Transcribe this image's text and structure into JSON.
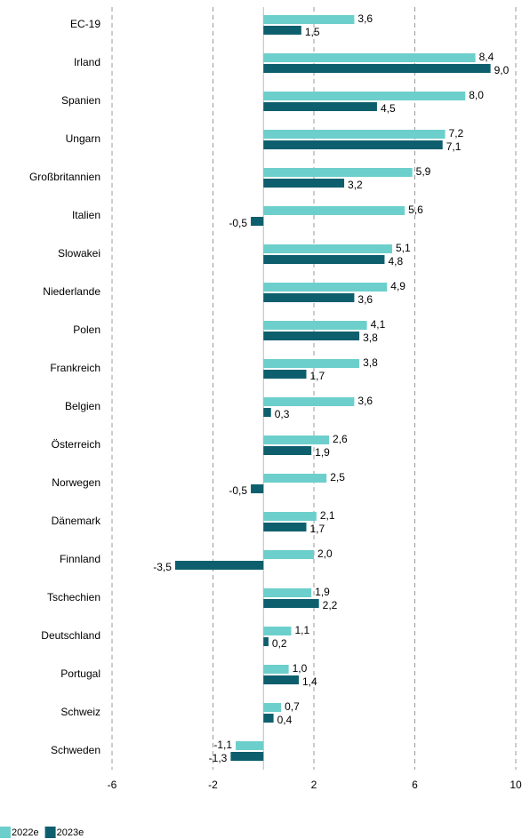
{
  "chart_data": {
    "type": "barh",
    "categories": [
      "EC-19",
      "Irland",
      "Spanien",
      "Ungarn",
      "Großbritannien",
      "Italien",
      "Slowakei",
      "Niederlande",
      "Polen",
      "Frankreich",
      "Belgien",
      "Österreich",
      "Norwegen",
      "Dänemark",
      "Finnland",
      "Tschechien",
      "Deutschland",
      "Portugal",
      "Schweiz",
      "Schweden"
    ],
    "series": [
      {
        "name": "2022e",
        "color": "#6dcfcc",
        "values": [
          3.6,
          8.4,
          8.0,
          7.2,
          5.9,
          5.6,
          5.1,
          4.9,
          4.1,
          3.8,
          3.6,
          2.6,
          2.5,
          2.1,
          2.0,
          1.9,
          1.1,
          1.0,
          0.7,
          -1.1
        ],
        "value_labels": [
          "3,6",
          "8,4",
          "8,0",
          "7,2",
          "5,9",
          "5,6",
          "5,1",
          "4,9",
          "4,1",
          "3,8",
          "3,6",
          "2,6",
          "2,5",
          "2,1",
          "2,0",
          "1,9",
          "1,1",
          "1,0",
          "0,7",
          "-1,1"
        ]
      },
      {
        "name": "2023e",
        "color": "#0e5f6e",
        "values": [
          1.5,
          9.0,
          4.5,
          7.1,
          3.2,
          -0.5,
          4.8,
          3.6,
          3.8,
          1.7,
          0.3,
          1.9,
          -0.5,
          1.7,
          -3.5,
          2.2,
          0.2,
          1.4,
          0.4,
          -1.3
        ],
        "value_labels": [
          "1,5",
          "9,0",
          "4,5",
          "7,1",
          "3,2",
          "-0,5",
          "4,8",
          "3,6",
          "3,8",
          "1,7",
          "0,3",
          "1,9",
          "-0,5",
          "1,7",
          "-3,5",
          "2,2",
          "0,2",
          "1,4",
          "0,4",
          "-1,3"
        ]
      }
    ],
    "xlim": [
      -6,
      10
    ],
    "xticks": [
      -6,
      -2,
      2,
      6,
      10
    ],
    "grid": true
  }
}
